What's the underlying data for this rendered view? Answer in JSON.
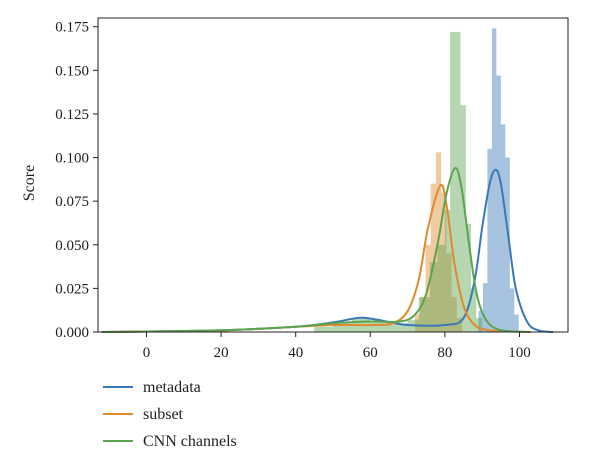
{
  "chart_data": {
    "type": "histogram",
    "ylabel": "Score",
    "xlim": [
      -13,
      113
    ],
    "ylim": [
      0,
      0.18
    ],
    "x_ticks": [
      0,
      20,
      40,
      60,
      80,
      100
    ],
    "x_tick_labels": [
      "0",
      "20",
      "40",
      "60",
      "80",
      "100"
    ],
    "y_ticks": [
      0,
      0.025,
      0.05,
      0.075,
      0.1,
      0.125,
      0.15,
      0.175
    ],
    "y_tick_labels": [
      "0.000",
      "0.025",
      "0.050",
      "0.075",
      "0.100",
      "0.125",
      "0.150",
      "0.175"
    ],
    "legend_position": "bottom-left, below plot",
    "series": [
      {
        "name": "metadata",
        "color": "#3a78b8",
        "bins": [
          {
            "x0": 89.0,
            "x1": 90.2,
            "y": 0.012
          },
          {
            "x0": 90.2,
            "x1": 91.4,
            "y": 0.028
          },
          {
            "x0": 91.4,
            "x1": 92.6,
            "y": 0.105
          },
          {
            "x0": 92.6,
            "x1": 93.8,
            "y": 0.174
          },
          {
            "x0": 93.8,
            "x1": 95.0,
            "y": 0.147
          },
          {
            "x0": 95.0,
            "x1": 96.2,
            "y": 0.119
          },
          {
            "x0": 96.2,
            "x1": 97.4,
            "y": 0.1
          },
          {
            "x0": 97.4,
            "x1": 98.6,
            "y": 0.025
          },
          {
            "x0": 98.6,
            "x1": 99.8,
            "y": 0.01
          }
        ],
        "kde": [
          [
            -12,
            0.0
          ],
          [
            0,
            0.0003
          ],
          [
            20,
            0.001
          ],
          [
            40,
            0.003
          ],
          [
            50,
            0.0055
          ],
          [
            55,
            0.0075
          ],
          [
            58,
            0.0082
          ],
          [
            62,
            0.007
          ],
          [
            70,
            0.004
          ],
          [
            80,
            0.004
          ],
          [
            85,
            0.008
          ],
          [
            88,
            0.03
          ],
          [
            90,
            0.06
          ],
          [
            92,
            0.085
          ],
          [
            93.6,
            0.093
          ],
          [
            95,
            0.085
          ],
          [
            97,
            0.055
          ],
          [
            99,
            0.025
          ],
          [
            102,
            0.006
          ],
          [
            105,
            0.001
          ],
          [
            109,
            0.0
          ]
        ]
      },
      {
        "name": "subset",
        "color": "#e08a2f",
        "bins": [
          {
            "x0": 72.0,
            "x1": 73.4,
            "y": 0.01
          },
          {
            "x0": 73.4,
            "x1": 74.8,
            "y": 0.02
          },
          {
            "x0": 74.8,
            "x1": 76.2,
            "y": 0.05
          },
          {
            "x0": 76.2,
            "x1": 77.6,
            "y": 0.085
          },
          {
            "x0": 77.6,
            "x1": 79.0,
            "y": 0.103
          },
          {
            "x0": 79.0,
            "x1": 80.4,
            "y": 0.08
          },
          {
            "x0": 80.4,
            "x1": 81.8,
            "y": 0.045
          },
          {
            "x0": 81.8,
            "x1": 83.2,
            "y": 0.02
          },
          {
            "x0": 83.2,
            "x1": 84.6,
            "y": 0.008
          }
        ],
        "kde": [
          [
            -12,
            0.0
          ],
          [
            0,
            0.0003
          ],
          [
            20,
            0.0008
          ],
          [
            40,
            0.003
          ],
          [
            50,
            0.004
          ],
          [
            60,
            0.004
          ],
          [
            66,
            0.005
          ],
          [
            70,
            0.012
          ],
          [
            73,
            0.03
          ],
          [
            75.5,
            0.06
          ],
          [
            78.8,
            0.084
          ],
          [
            80.5,
            0.072
          ],
          [
            82.5,
            0.04
          ],
          [
            85,
            0.015
          ],
          [
            88,
            0.004
          ],
          [
            92,
            0.001
          ],
          [
            102,
            0.0
          ]
        ]
      },
      {
        "name": "CNN channels",
        "color": "#5aa450",
        "bins": [
          {
            "x0": 45,
            "x1": 50,
            "y": 0.003
          },
          {
            "x0": 50,
            "x1": 55,
            "y": 0.005
          },
          {
            "x0": 55,
            "x1": 60,
            "y": 0.008
          },
          {
            "x0": 60,
            "x1": 65,
            "y": 0.006
          },
          {
            "x0": 65,
            "x1": 70,
            "y": 0.005
          },
          {
            "x0": 70,
            "x1": 73,
            "y": 0.007
          },
          {
            "x0": 73,
            "x1": 76,
            "y": 0.02
          },
          {
            "x0": 76,
            "x1": 78,
            "y": 0.04
          },
          {
            "x0": 78,
            "x1": 80,
            "y": 0.05
          },
          {
            "x0": 80,
            "x1": 81.4,
            "y": 0.07
          },
          {
            "x0": 81.4,
            "x1": 82.8,
            "y": 0.172
          },
          {
            "x0": 82.8,
            "x1": 84.2,
            "y": 0.172
          },
          {
            "x0": 84.2,
            "x1": 85.6,
            "y": 0.13
          },
          {
            "x0": 85.6,
            "x1": 87.0,
            "y": 0.062
          },
          {
            "x0": 87.0,
            "x1": 88.4,
            "y": 0.025
          },
          {
            "x0": 88.4,
            "x1": 90.0,
            "y": 0.008
          }
        ],
        "kde": [
          [
            -12,
            0.0
          ],
          [
            0,
            0.0003
          ],
          [
            20,
            0.001
          ],
          [
            40,
            0.003
          ],
          [
            50,
            0.005
          ],
          [
            60,
            0.006
          ],
          [
            68,
            0.006
          ],
          [
            72,
            0.01
          ],
          [
            75,
            0.022
          ],
          [
            78,
            0.05
          ],
          [
            80.5,
            0.08
          ],
          [
            82.8,
            0.094
          ],
          [
            84.5,
            0.082
          ],
          [
            86.5,
            0.05
          ],
          [
            88.5,
            0.022
          ],
          [
            91,
            0.007
          ],
          [
            95,
            0.001
          ],
          [
            103,
            0.0
          ]
        ]
      }
    ]
  }
}
